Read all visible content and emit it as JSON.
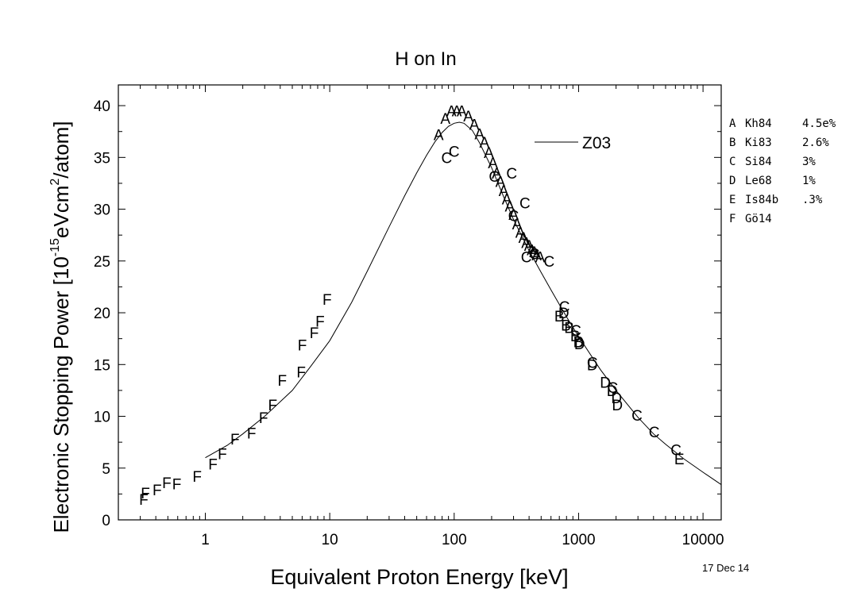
{
  "chart_data": {
    "type": "scatter",
    "title": "H on In",
    "xlabel": "Equivalent Proton Energy [keV]",
    "ylabel": "Electronic Stopping Power [10",
    "ylabel_sup1": "-15",
    "ylabel_unit_a": "eVcm",
    "ylabel_sup2": "2",
    "ylabel_unit_b": "/atom]",
    "x_scale": "log",
    "xlim": [
      0.2,
      14000
    ],
    "ylim": [
      0,
      42
    ],
    "x_ticks": [
      1,
      10,
      100,
      1000,
      10000
    ],
    "x_tick_labels": [
      "1",
      "10",
      "100",
      "1000",
      "10000"
    ],
    "y_ticks": [
      0,
      5,
      10,
      15,
      20,
      25,
      30,
      35,
      40
    ],
    "y_tick_labels": [
      "0",
      "5",
      "10",
      "15",
      "20",
      "25",
      "30",
      "35",
      "40"
    ],
    "grid": false,
    "date": "17 Dec 14",
    "curve": {
      "name": "Z03",
      "x": [
        1,
        1.5,
        2,
        3,
        5,
        7,
        10,
        15,
        20,
        30,
        40,
        50,
        60,
        70,
        80,
        90,
        100,
        110,
        120,
        140,
        160,
        200,
        250,
        300,
        400,
        500,
        600,
        800,
        1000,
        1500,
        2000,
        3000,
        4000,
        5000,
        7000,
        10000,
        14000
      ],
      "y": [
        6.0,
        7.2,
        8.3,
        10.0,
        12.5,
        14.8,
        17.3,
        21.0,
        24.0,
        28.3,
        31.3,
        33.5,
        35.2,
        36.5,
        37.4,
        38.0,
        38.3,
        38.4,
        38.3,
        37.6,
        36.4,
        34.0,
        31.2,
        29.0,
        26.0,
        23.9,
        22.2,
        19.6,
        17.7,
        14.5,
        12.5,
        9.9,
        8.3,
        7.3,
        5.9,
        4.6,
        3.4
      ]
    },
    "series": [
      {
        "name": "A",
        "ref": "Kh84",
        "err": "4.5e%",
        "x": [
          75,
          85,
          95,
          105,
          115,
          130,
          145,
          160,
          175,
          190,
          205,
          220,
          235,
          250,
          265,
          280,
          300,
          320,
          340,
          360,
          380,
          400,
          420,
          440,
          460,
          490
        ],
        "y": [
          37.2,
          38.8,
          39.5,
          39.5,
          39.5,
          39.0,
          38.2,
          37.3,
          36.5,
          35.5,
          34.5,
          33.5,
          32.7,
          31.8,
          31.0,
          30.3,
          29.5,
          28.6,
          27.8,
          27.3,
          26.8,
          26.5,
          26.1,
          25.9,
          25.6,
          25.4
        ]
      },
      {
        "name": "B",
        "ref": "Ki83",
        "err": "2.6%",
        "x": [
          700,
          790,
          840,
          940,
          1000
        ],
        "y": [
          19.7,
          18.8,
          18.6,
          17.8,
          17.2
        ]
      },
      {
        "name": "C",
        "ref": "Si84",
        "err": "3%",
        "x": [
          87,
          100,
          210,
          290,
          300,
          370,
          380,
          440,
          580,
          770,
          950,
          1290,
          1880,
          2950,
          4050,
          6070
        ],
        "y": [
          35.0,
          35.6,
          33.2,
          33.5,
          29.4,
          30.6,
          25.4,
          25.7,
          25.0,
          20.6,
          18.3,
          15.2,
          12.8,
          10.1,
          8.5,
          6.8
        ]
      },
      {
        "name": "D",
        "ref": "Le68",
        "err": "1%",
        "x": [
          760,
          1000,
          1020,
          1290,
          1640,
          1860,
          2020,
          2050
        ],
        "y": [
          20.0,
          17.2,
          17.0,
          15.0,
          13.3,
          12.5,
          11.8,
          11.1
        ]
      },
      {
        "name": "E",
        "ref": "Is84b",
        "err": ".3%",
        "x": [
          6450
        ],
        "y": [
          5.9
        ]
      },
      {
        "name": "F",
        "ref": "Gö14",
        "err": "",
        "x": [
          0.32,
          0.33,
          0.41,
          0.49,
          0.59,
          0.86,
          1.15,
          1.37,
          1.73,
          2.35,
          2.93,
          3.48,
          4.15,
          5.89,
          6.01,
          7.5,
          8.35,
          9.52
        ],
        "y": [
          2.0,
          2.6,
          2.9,
          3.6,
          3.5,
          4.2,
          5.4,
          6.4,
          7.8,
          8.4,
          9.9,
          11.1,
          13.5,
          14.3,
          16.9,
          18.1,
          19.2,
          21.3
        ]
      }
    ]
  },
  "legend": [
    {
      "code": "A",
      "ref": "Kh84",
      "err": "4.5e%"
    },
    {
      "code": "B",
      "ref": "Ki83",
      "err": "2.6%"
    },
    {
      "code": "C",
      "ref": "Si84",
      "err": "3%"
    },
    {
      "code": "D",
      "ref": "Le68",
      "err": "1%"
    },
    {
      "code": "E",
      "ref": "Is84b",
      "err": ".3%"
    },
    {
      "code": "F",
      "ref": "Gö14",
      "err": ""
    }
  ]
}
